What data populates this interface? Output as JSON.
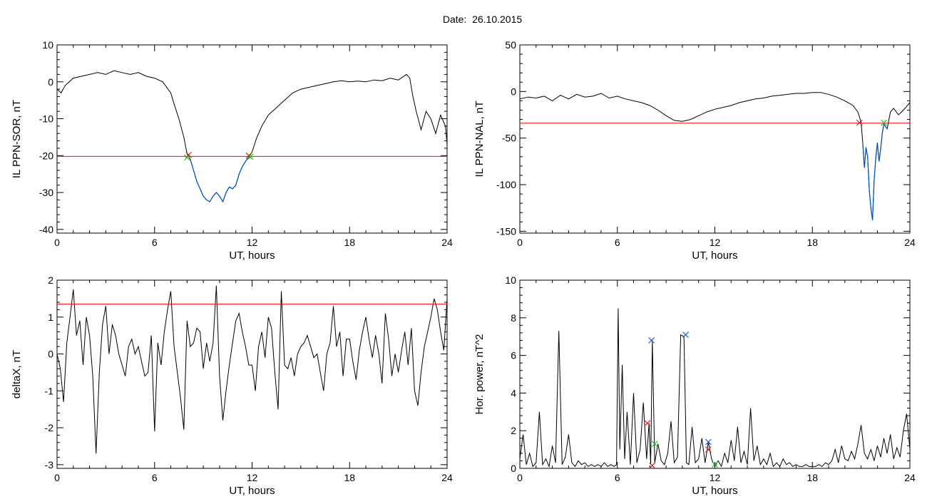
{
  "title": "Date:  26.10.2015",
  "colors": {
    "trace": "#000000",
    "threshold": "#ff0000",
    "below": "#0050c8",
    "mark_red": "#e02020",
    "mark_green": "#20c020",
    "mark_blue": "#2060c0"
  },
  "chart_data": [
    {
      "id": "il-sor",
      "type": "line",
      "xlabel": "UT, hours",
      "ylabel": "IL PPN-SOR, nT",
      "xlim": [
        0,
        24
      ],
      "ylim": [
        -41,
        10
      ],
      "xticks": [
        0,
        6,
        12,
        18,
        24
      ],
      "yticks": [
        -40,
        -30,
        -20,
        -10,
        0,
        10
      ],
      "threshold": -20.2,
      "below_color": "blue",
      "series": [
        {
          "x": [
            0,
            0.25,
            0.5,
            0.75,
            1,
            1.5,
            2,
            2.5,
            3,
            3.5,
            4,
            4.5,
            5,
            5.5,
            6,
            6.5,
            7,
            7.2,
            7.5,
            7.8,
            8.0,
            8.2,
            8.4,
            8.6,
            8.8,
            9.0,
            9.2,
            9.4,
            9.6,
            9.8,
            10.0,
            10.2,
            10.4,
            10.6,
            10.8,
            11.0,
            11.2,
            11.4,
            11.6,
            11.8,
            12.0,
            12.3,
            12.6,
            13,
            13.5,
            14,
            14.5,
            15,
            15.5,
            16,
            16.5,
            17,
            17.5,
            18,
            18.5,
            19,
            19.5,
            20,
            20.5,
            21,
            21.5,
            21.7,
            21.9,
            22.1,
            22.4,
            22.7,
            23,
            23.3,
            23.6,
            23.9,
            24
          ],
          "y": [
            -2,
            -3,
            -1,
            0,
            1,
            1.5,
            2,
            2.5,
            2,
            3,
            2.5,
            2,
            2.5,
            1.5,
            1,
            0,
            -3,
            -6,
            -10,
            -15,
            -19.5,
            -21,
            -24,
            -27,
            -29,
            -31,
            -32,
            -32.5,
            -31,
            -30,
            -31,
            -32.5,
            -30,
            -28.5,
            -29,
            -28,
            -25,
            -23,
            -21.5,
            -20.4,
            -19,
            -15,
            -12,
            -9,
            -7,
            -5,
            -3,
            -2,
            -1.5,
            -1,
            -0.5,
            0,
            0.3,
            0,
            0.2,
            0,
            0.5,
            0.3,
            1,
            0.5,
            2,
            1,
            -4,
            -8,
            -13,
            -8,
            -10,
            -14,
            -9,
            -12,
            -17
          ]
        }
      ],
      "marks": [
        {
          "x": 8.1,
          "y": -19.8,
          "color": "red"
        },
        {
          "x": 8.0,
          "y": -20.5,
          "color": "green"
        },
        {
          "x": 11.8,
          "y": -20.0,
          "color": "red"
        },
        {
          "x": 11.9,
          "y": -20.3,
          "color": "green"
        }
      ]
    },
    {
      "id": "il-nal",
      "type": "line",
      "xlabel": "UT, hours",
      "ylabel": "IL PPN-NAL, nT",
      "xlim": [
        0,
        24
      ],
      "ylim": [
        -152,
        50
      ],
      "xticks": [
        0,
        6,
        12,
        18,
        24
      ],
      "yticks": [
        -150,
        -100,
        -50,
        0,
        50
      ],
      "threshold": -34,
      "below_color": "blue",
      "series": [
        {
          "x": [
            0,
            0.5,
            1,
            1.5,
            2,
            2.5,
            3,
            3.5,
            4,
            4.5,
            5,
            5.5,
            6,
            6.5,
            7,
            7.5,
            8,
            8.5,
            9,
            9.5,
            10,
            10.5,
            11,
            11.5,
            12,
            12.5,
            13,
            13.5,
            14,
            14.5,
            15,
            15.5,
            16,
            16.5,
            17,
            17.5,
            18,
            18.5,
            19,
            19.5,
            20,
            20.5,
            20.8,
            21.0,
            21.1,
            21.2,
            21.3,
            21.4,
            21.5,
            21.6,
            21.7,
            21.8,
            21.9,
            22.0,
            22.1,
            22.2,
            22.3,
            22.4,
            22.6,
            22.8,
            23,
            23.3,
            23.6,
            24
          ],
          "y": [
            -8,
            -6,
            -7,
            -5,
            -10,
            -4,
            -8,
            -3,
            -6,
            -5,
            -2,
            -7,
            -5,
            -8,
            -10,
            -12,
            -15,
            -20,
            -26,
            -31,
            -32,
            -30,
            -26,
            -22,
            -19,
            -17,
            -15,
            -12,
            -10,
            -8,
            -7,
            -5,
            -4,
            -3,
            -2,
            -2,
            -1,
            -1,
            -3,
            -6,
            -10,
            -15,
            -22,
            -33,
            -55,
            -82,
            -60,
            -70,
            -105,
            -125,
            -138,
            -95,
            -72,
            -55,
            -75,
            -62,
            -45,
            -35,
            -40,
            -22,
            -18,
            -25,
            -20,
            -12
          ]
        }
      ],
      "marks": [
        {
          "x": 20.9,
          "y": -33.5,
          "color": "red"
        },
        {
          "x": 22.4,
          "y": -33.5,
          "color": "green"
        }
      ]
    },
    {
      "id": "deltax",
      "type": "line",
      "xlabel": "UT, hours",
      "ylabel": "deltaX, nT",
      "xlim": [
        0,
        24
      ],
      "ylim": [
        -3.1,
        2
      ],
      "xticks": [
        0,
        6,
        12,
        18,
        24
      ],
      "yticks": [
        -3,
        -2,
        -1,
        0,
        1,
        2
      ],
      "threshold": 1.35,
      "series": [
        {
          "x": [
            0,
            0.2,
            0.4,
            0.6,
            0.8,
            1.0,
            1.2,
            1.4,
            1.6,
            1.8,
            2.0,
            2.2,
            2.4,
            2.6,
            2.8,
            3.0,
            3.2,
            3.4,
            3.6,
            3.8,
            4.0,
            4.2,
            4.4,
            4.6,
            4.8,
            5.0,
            5.2,
            5.4,
            5.6,
            5.8,
            6.0,
            6.2,
            6.4,
            6.6,
            6.8,
            7.0,
            7.2,
            7.4,
            7.6,
            7.8,
            8.0,
            8.2,
            8.4,
            8.6,
            8.8,
            9.0,
            9.2,
            9.4,
            9.6,
            9.8,
            10.0,
            10.2,
            10.4,
            10.6,
            10.8,
            11.0,
            11.2,
            11.4,
            11.6,
            11.8,
            12.0,
            12.2,
            12.4,
            12.6,
            12.8,
            13.0,
            13.2,
            13.4,
            13.6,
            13.8,
            14.0,
            14.2,
            14.4,
            14.6,
            14.8,
            15.0,
            15.2,
            15.4,
            15.6,
            15.8,
            16.0,
            16.2,
            16.4,
            16.6,
            16.8,
            17.0,
            17.2,
            17.4,
            17.6,
            17.8,
            18.0,
            18.2,
            18.4,
            18.6,
            18.8,
            19.0,
            19.2,
            19.4,
            19.6,
            19.8,
            20.0,
            20.2,
            20.4,
            20.6,
            20.8,
            21.0,
            21.2,
            21.4,
            21.6,
            21.8,
            22.0,
            22.2,
            22.4,
            22.6,
            22.8,
            23.0,
            23.2,
            23.4,
            23.6,
            23.8,
            24.0
          ],
          "y": [
            0,
            -0.4,
            -1.3,
            0.3,
            1.0,
            1.75,
            0.5,
            0.9,
            -0.3,
            1.0,
            0.5,
            -0.6,
            -2.7,
            -0.5,
            0.8,
            1.3,
            0.0,
            0.8,
            0.5,
            0.0,
            -0.3,
            -0.6,
            0.2,
            0.4,
            0.0,
            0.2,
            -0.2,
            -0.6,
            -0.5,
            0.5,
            -2.1,
            0.3,
            -0.3,
            0.6,
            1.2,
            1.7,
            0.2,
            -0.5,
            -1.2,
            -2.05,
            0.9,
            0.2,
            0.3,
            0.7,
            0.6,
            -0.4,
            0.3,
            -0.2,
            0.3,
            1.85,
            -0.6,
            -1.8,
            -1.0,
            -0.3,
            0.3,
            0.9,
            1.1,
            0.6,
            0.2,
            -0.3,
            -0.3,
            -1.0,
            0.2,
            0.6,
            -0.1,
            1.0,
            0.7,
            -0.5,
            -1.5,
            1.7,
            -0.3,
            -0.4,
            -0.1,
            -0.6,
            0.0,
            0.2,
            0.3,
            0.5,
            0.2,
            -0.1,
            0.0,
            -0.5,
            -1.0,
            0.0,
            0.3,
            1.3,
            0.2,
            0.6,
            -0.6,
            0.4,
            0.4,
            -0.2,
            -0.7,
            0.1,
            0.6,
            1.0,
            0.4,
            -0.1,
            0.5,
            0.0,
            -0.8,
            1.1,
            0.4,
            -0.6,
            0.0,
            -0.5,
            0.1,
            0.6,
            -0.3,
            0.7,
            -1.0,
            -1.4,
            -0.5,
            0.2,
            0.6,
            1.0,
            1.5,
            1.2,
            0.6,
            0.1,
            1.5
          ]
        }
      ]
    },
    {
      "id": "hor-power",
      "type": "line",
      "xlabel": "UT, hours",
      "ylabel": "Hor. power, nT^2",
      "xlim": [
        0,
        24
      ],
      "ylim": [
        0,
        10
      ],
      "xticks": [
        0,
        6,
        12,
        18,
        24
      ],
      "yticks": [
        0,
        2,
        4,
        6,
        8,
        10
      ],
      "series": [
        {
          "x": [
            0,
            0.2,
            0.4,
            0.6,
            0.8,
            1.0,
            1.2,
            1.4,
            1.6,
            1.8,
            2.0,
            2.2,
            2.4,
            2.6,
            2.8,
            3.0,
            3.2,
            3.4,
            3.6,
            3.8,
            4.0,
            4.2,
            4.4,
            4.6,
            4.8,
            5.0,
            5.2,
            5.4,
            5.6,
            5.8,
            5.95,
            6.05,
            6.15,
            6.3,
            6.45,
            6.6,
            6.8,
            7.0,
            7.2,
            7.4,
            7.6,
            7.8,
            7.95,
            8.05,
            8.15,
            8.3,
            8.5,
            8.7,
            8.9,
            9.1,
            9.3,
            9.5,
            9.7,
            9.9,
            10.1,
            10.25,
            10.4,
            10.6,
            10.8,
            11.0,
            11.2,
            11.4,
            11.6,
            11.8,
            12.0,
            12.2,
            12.4,
            12.6,
            12.8,
            13.0,
            13.2,
            13.4,
            13.6,
            13.8,
            14.0,
            14.2,
            14.4,
            14.6,
            14.8,
            15.0,
            15.2,
            15.4,
            15.6,
            15.8,
            16.0,
            16.2,
            16.4,
            16.6,
            16.8,
            17.0,
            17.2,
            17.4,
            17.6,
            17.8,
            18.0,
            18.2,
            18.4,
            18.6,
            18.8,
            19.0,
            19.2,
            19.4,
            19.6,
            19.8,
            20.0,
            20.2,
            20.4,
            20.6,
            20.8,
            21.0,
            21.2,
            21.4,
            21.6,
            21.8,
            22.0,
            22.2,
            22.4,
            22.6,
            22.8,
            23.0,
            23.2,
            23.4,
            23.6,
            23.8,
            24.0
          ],
          "y": [
            0.5,
            1.8,
            0.2,
            0.8,
            0.1,
            0.3,
            3.0,
            0.2,
            0.5,
            0.1,
            1.2,
            0.3,
            7.3,
            0.2,
            0.6,
            1.8,
            0.3,
            0.1,
            0.4,
            0.2,
            0.3,
            0.1,
            0.2,
            0.1,
            0.2,
            0.1,
            0.3,
            0.1,
            0.2,
            0.1,
            0.2,
            8.5,
            1.0,
            5.5,
            0.5,
            3.0,
            0.2,
            4.0,
            0.3,
            1.0,
            3.5,
            0.5,
            2.4,
            0.2,
            6.8,
            0.3,
            1.3,
            0.4,
            0.2,
            0.8,
            2.5,
            0.3,
            0.6,
            7.1,
            7.0,
            0.3,
            0.2,
            2.2,
            0.3,
            0.5,
            1.6,
            0.3,
            1.4,
            0.5,
            0.1,
            0.4,
            0.1,
            0.8,
            0.3,
            1.5,
            0.4,
            2.2,
            0.3,
            0.9,
            0.2,
            3.2,
            0.4,
            1.2,
            0.2,
            0.5,
            0.2,
            0.8,
            0.1,
            0.3,
            0.1,
            0.5,
            0.2,
            0.3,
            0.1,
            0.2,
            0.1,
            0.1,
            0.2,
            0.1,
            0.1,
            0.1,
            0.2,
            0.1,
            0.3,
            0.2,
            0.4,
            1.0,
            0.3,
            1.2,
            0.5,
            0.4,
            0.9,
            0.5,
            1.3,
            2.3,
            0.8,
            0.5,
            1.0,
            0.4,
            1.2,
            0.6,
            1.6,
            0.8,
            1.8,
            0.5,
            1.1,
            0.6,
            2.0,
            2.9,
            1.0
          ]
        }
      ],
      "marks": [
        {
          "x": 7.85,
          "y": 2.4,
          "color": "red"
        },
        {
          "x": 8.15,
          "y": 0.15,
          "color": "red"
        },
        {
          "x": 8.1,
          "y": 6.8,
          "color": "blue"
        },
        {
          "x": 8.3,
          "y": 1.3,
          "color": "green"
        },
        {
          "x": 10.2,
          "y": 7.1,
          "color": "blue"
        },
        {
          "x": 11.6,
          "y": 1.4,
          "color": "blue"
        },
        {
          "x": 11.6,
          "y": 1.0,
          "color": "red"
        },
        {
          "x": 12.0,
          "y": 0.2,
          "color": "green"
        }
      ]
    }
  ]
}
